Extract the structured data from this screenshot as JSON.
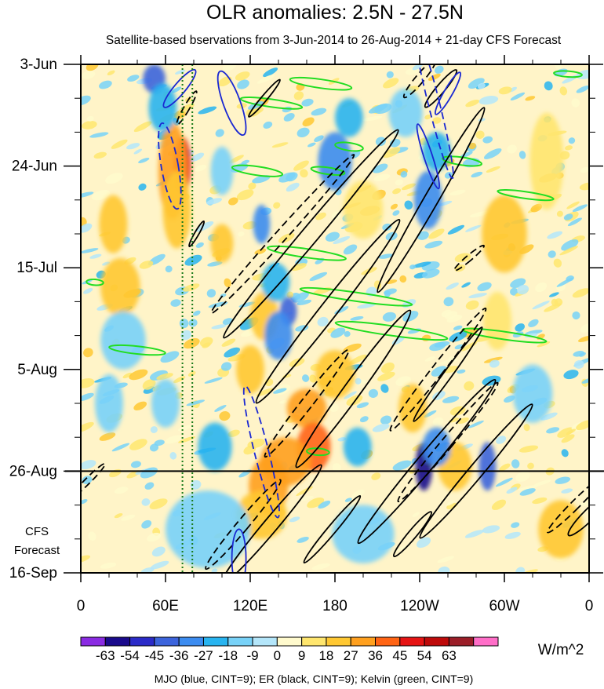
{
  "chart_data": {
    "type": "heatmap",
    "title": "OLR anomalies: 2.5N - 27.5N",
    "subtitle": "Satellite-based bservations from 3-Jun-2014 to 26-Aug-2014 + 21-day CFS Forecast",
    "xlabel": "",
    "ylabel": "",
    "x_ticks": [
      "0",
      "60E",
      "120E",
      "180",
      "120W",
      "60W",
      "0"
    ],
    "x_tick_values": [
      0,
      60,
      120,
      180,
      240,
      300,
      360
    ],
    "xlim": [
      0,
      360
    ],
    "y_ticks": [
      "3-Jun",
      "24-Jun",
      "15-Jul",
      "5-Aug",
      "26-Aug",
      "16-Sep"
    ],
    "y_tick_values": [
      0,
      21,
      42,
      63,
      84,
      105
    ],
    "ylim": [
      0,
      105
    ],
    "forecast_label": [
      "CFS",
      "Forecast"
    ],
    "forecast_start_day": 84,
    "colorbar": {
      "labels": [
        "-63",
        "-54",
        "-45",
        "-36",
        "-27",
        "-18",
        "-9",
        "0",
        "9",
        "18",
        "27",
        "36",
        "45",
        "54",
        "63"
      ],
      "levels": [
        -63,
        -54,
        -45,
        -36,
        -27,
        -18,
        -9,
        0,
        9,
        18,
        27,
        36,
        45,
        54,
        63
      ],
      "colors": [
        "#8a2be2",
        "#1a0a8c",
        "#2b2bc8",
        "#3c64dc",
        "#3c8cf0",
        "#28b4f0",
        "#78d2f8",
        "#b4e6fa",
        "#fffacd",
        "#ffe66e",
        "#ffc832",
        "#ffa01e",
        "#ff6414",
        "#e61414",
        "#be0a0a",
        "#9b1e28",
        "#ff6ec8"
      ],
      "units": "W/m^2"
    },
    "footer": "MJO (blue, CINT=9); ER (black, CINT=9); Kelvin (green, CINT=9)",
    "reference_lines": [
      {
        "lon": 72,
        "style": "dotted",
        "color": "#1a7a1a"
      },
      {
        "lon": 79,
        "style": "dotted",
        "color": "#1a7a1a"
      }
    ],
    "anomalies": [
      {
        "lon": 72,
        "day": 21,
        "w": 6,
        "h": 6,
        "value": 50
      },
      {
        "lon": 65,
        "day": 22,
        "w": 10,
        "h": 10,
        "value": 30
      },
      {
        "lon": 68,
        "day": 30,
        "w": 10,
        "h": 8,
        "value": 22
      },
      {
        "lon": 23,
        "day": 33,
        "w": 10,
        "h": 6,
        "value": 22
      },
      {
        "lon": 28,
        "day": 46,
        "w": 14,
        "h": 6,
        "value": 18
      },
      {
        "lon": 100,
        "day": 37,
        "w": 8,
        "h": 4,
        "value": 20
      },
      {
        "lon": 130,
        "day": 52,
        "w": 10,
        "h": 5,
        "value": 22
      },
      {
        "lon": 120,
        "day": 63,
        "w": 10,
        "h": 5,
        "value": 18
      },
      {
        "lon": 160,
        "day": 71,
        "w": 14,
        "h": 4,
        "value": 30
      },
      {
        "lon": 165,
        "day": 79,
        "w": 12,
        "h": 5,
        "value": 38
      },
      {
        "lon": 145,
        "day": 82,
        "w": 18,
        "h": 5,
        "value": 30
      },
      {
        "lon": 133,
        "day": 87,
        "w": 14,
        "h": 6,
        "value": 30
      },
      {
        "lon": 128,
        "day": 93,
        "w": 18,
        "h": 5,
        "value": 20
      },
      {
        "lon": 180,
        "day": 64,
        "w": 14,
        "h": 5,
        "value": 18
      },
      {
        "lon": 235,
        "day": 71,
        "w": 10,
        "h": 5,
        "value": 18
      },
      {
        "lon": 265,
        "day": 83,
        "w": 12,
        "h": 5,
        "value": 22
      },
      {
        "lon": 300,
        "day": 35,
        "w": 16,
        "h": 8,
        "value": 18
      },
      {
        "lon": 295,
        "day": 53,
        "w": 10,
        "h": 6,
        "value": 14
      },
      {
        "lon": 330,
        "day": 20,
        "w": 12,
        "h": 10,
        "value": 14
      },
      {
        "lon": 340,
        "day": 96,
        "w": 16,
        "h": 6,
        "value": 18
      },
      {
        "lon": 200,
        "day": 30,
        "w": 14,
        "h": 6,
        "value": 14
      },
      {
        "lon": 52,
        "day": 3,
        "w": 8,
        "h": 3,
        "value": -40
      },
      {
        "lon": 58,
        "day": 9,
        "w": 10,
        "h": 5,
        "value": -20
      },
      {
        "lon": 128,
        "day": 33,
        "w": 6,
        "h": 4,
        "value": -35
      },
      {
        "lon": 138,
        "day": 45,
        "w": 10,
        "h": 4,
        "value": -25
      },
      {
        "lon": 147,
        "day": 51,
        "w": 6,
        "h": 3,
        "value": -40
      },
      {
        "lon": 140,
        "day": 56,
        "w": 10,
        "h": 5,
        "value": -30
      },
      {
        "lon": 180,
        "day": 20,
        "w": 12,
        "h": 6,
        "value": -30
      },
      {
        "lon": 190,
        "day": 11,
        "w": 10,
        "h": 4,
        "value": -20
      },
      {
        "lon": 246,
        "day": 28,
        "w": 10,
        "h": 6,
        "value": -36
      },
      {
        "lon": 252,
        "day": 18,
        "w": 10,
        "h": 4,
        "value": -22
      },
      {
        "lon": 230,
        "day": 10,
        "w": 12,
        "h": 5,
        "value": -18
      },
      {
        "lon": 243,
        "day": 83,
        "w": 6,
        "h": 5,
        "value": -55
      },
      {
        "lon": 252,
        "day": 79,
        "w": 10,
        "h": 4,
        "value": -30
      },
      {
        "lon": 288,
        "day": 83,
        "w": 6,
        "h": 5,
        "value": -45
      },
      {
        "lon": 196,
        "day": 79,
        "w": 10,
        "h": 4,
        "value": -20
      },
      {
        "lon": 95,
        "day": 79,
        "w": 12,
        "h": 5,
        "value": -25
      },
      {
        "lon": 60,
        "day": 70,
        "w": 10,
        "h": 5,
        "value": -18
      },
      {
        "lon": 20,
        "day": 70,
        "w": 10,
        "h": 6,
        "value": -18
      },
      {
        "lon": 30,
        "day": 57,
        "w": 16,
        "h": 6,
        "value": -14
      },
      {
        "lon": 100,
        "day": 22,
        "w": 8,
        "h": 5,
        "value": -18
      },
      {
        "lon": 320,
        "day": 68,
        "w": 14,
        "h": 6,
        "value": -14
      },
      {
        "lon": 90,
        "day": 96,
        "w": 30,
        "h": 8,
        "value": -10
      },
      {
        "lon": 200,
        "day": 97,
        "w": 22,
        "h": 6,
        "value": -12
      }
    ],
    "mjo_contours": [
      {
        "lon": 63,
        "day": 21,
        "rx": 6,
        "ry": 9,
        "angle": -10,
        "dash": true
      },
      {
        "lon": 70,
        "day": 5,
        "rx": 4,
        "ry": 5,
        "angle": 40,
        "dash": false
      },
      {
        "lon": 107,
        "day": 8,
        "rx": 6,
        "ry": 7,
        "angle": -20,
        "dash": false
      },
      {
        "lon": 246,
        "day": 19,
        "rx": 3,
        "ry": 7,
        "angle": -18,
        "dash": false
      },
      {
        "lon": 250,
        "day": 8,
        "rx": 4,
        "ry": 16,
        "angle": -14,
        "dash": true
      },
      {
        "lon": 128,
        "day": 80,
        "rx": 5,
        "ry": 14,
        "angle": -14,
        "dash": true
      },
      {
        "lon": 112,
        "day": 102,
        "rx": 5,
        "ry": 6,
        "angle": 0,
        "dash": false
      },
      {
        "lon": 260,
        "day": 6,
        "rx": 3,
        "ry": 5,
        "angle": 30,
        "dash": false
      }
    ],
    "er_contours": [
      {
        "lon": 163,
        "day": 35,
        "rx": 6,
        "ry": 28,
        "angle": 40,
        "dash": false
      },
      {
        "lon": 143,
        "day": 35,
        "rx": 4,
        "ry": 22,
        "angle": 42,
        "dash": true
      },
      {
        "lon": 175,
        "day": 51,
        "rx": 6,
        "ry": 24,
        "angle": 38,
        "dash": false
      },
      {
        "lon": 193,
        "day": 67,
        "rx": 6,
        "ry": 20,
        "angle": 36,
        "dash": false
      },
      {
        "lon": 160,
        "day": 70,
        "rx": 4,
        "ry": 14,
        "angle": 38,
        "dash": true
      },
      {
        "lon": 245,
        "day": 82,
        "rx": 6,
        "ry": 22,
        "angle": 40,
        "dash": false
      },
      {
        "lon": 280,
        "day": 84,
        "rx": 5,
        "ry": 18,
        "angle": 40,
        "dash": false
      },
      {
        "lon": 260,
        "day": 78,
        "rx": 4,
        "ry": 16,
        "angle": 40,
        "dash": true
      },
      {
        "lon": 248,
        "day": 28,
        "rx": 5,
        "ry": 22,
        "angle": 30,
        "dash": false
      },
      {
        "lon": 253,
        "day": 63,
        "rx": 4,
        "ry": 16,
        "angle": 38,
        "dash": true
      },
      {
        "lon": 260,
        "day": 64,
        "rx": 3,
        "ry": 12,
        "angle": 36,
        "dash": false
      },
      {
        "lon": 275,
        "day": 40,
        "rx": 2,
        "ry": 4,
        "angle": 50,
        "dash": true
      },
      {
        "lon": 240,
        "day": 3,
        "rx": 3,
        "ry": 5,
        "angle": 40,
        "dash": true
      },
      {
        "lon": 255,
        "day": 5,
        "rx": 3,
        "ry": 5,
        "angle": 40,
        "dash": false
      },
      {
        "lon": 130,
        "day": 7,
        "rx": 2,
        "ry": 5,
        "angle": 40,
        "dash": false
      },
      {
        "lon": 75,
        "day": 9,
        "rx": 2,
        "ry": 4,
        "angle": 30,
        "dash": true
      },
      {
        "lon": 82,
        "day": 35,
        "rx": 1.5,
        "ry": 3,
        "angle": 30,
        "dash": false
      },
      {
        "lon": 135,
        "day": 95,
        "rx": 5,
        "ry": 16,
        "angle": 40,
        "dash": false
      },
      {
        "lon": 115,
        "day": 95,
        "rx": 4,
        "ry": 12,
        "angle": 40,
        "dash": true
      },
      {
        "lon": 178,
        "day": 96,
        "rx": 3,
        "ry": 9,
        "angle": 40,
        "dash": false
      },
      {
        "lon": 235,
        "day": 97,
        "rx": 3,
        "ry": 6,
        "angle": 40,
        "dash": false
      },
      {
        "lon": 350,
        "day": 91,
        "rx": 3,
        "ry": 8,
        "angle": 45,
        "dash": true
      },
      {
        "lon": 5,
        "day": 86,
        "rx": 2,
        "ry": 5,
        "angle": 45,
        "dash": true
      },
      {
        "lon": 360,
        "day": 93,
        "rx": 4,
        "ry": 6,
        "angle": 45,
        "dash": false
      }
    ],
    "kelvin_contours": [
      {
        "lon": 170,
        "day": 4,
        "rx": 22,
        "ry": 0.9,
        "angle": 8
      },
      {
        "lon": 135,
        "day": 8,
        "rx": 22,
        "ry": 0.8,
        "angle": 8
      },
      {
        "lon": 190,
        "day": 17,
        "rx": 10,
        "ry": 0.8,
        "angle": 8
      },
      {
        "lon": 125,
        "day": 22,
        "rx": 18,
        "ry": 0.9,
        "angle": 8
      },
      {
        "lon": 175,
        "day": 22,
        "rx": 12,
        "ry": 0.7,
        "angle": 8
      },
      {
        "lon": 270,
        "day": 20,
        "rx": 14,
        "ry": 0.8,
        "angle": 8
      },
      {
        "lon": 315,
        "day": 27,
        "rx": 20,
        "ry": 0.7,
        "angle": 8
      },
      {
        "lon": 160,
        "day": 39,
        "rx": 28,
        "ry": 0.9,
        "angle": 8
      },
      {
        "lon": 195,
        "day": 48,
        "rx": 40,
        "ry": 0.9,
        "angle": 8
      },
      {
        "lon": 220,
        "day": 55,
        "rx": 40,
        "ry": 1.0,
        "angle": 8
      },
      {
        "lon": 300,
        "day": 56,
        "rx": 30,
        "ry": 0.8,
        "angle": 8
      },
      {
        "lon": 40,
        "day": 59,
        "rx": 20,
        "ry": 0.8,
        "angle": 6
      },
      {
        "lon": 168,
        "day": 80,
        "rx": 8,
        "ry": 0.7,
        "angle": 4
      },
      {
        "lon": 345,
        "day": 2,
        "rx": 10,
        "ry": 0.6,
        "angle": 4
      },
      {
        "lon": 10,
        "day": 45,
        "rx": 6,
        "ry": 0.6,
        "angle": 4
      }
    ]
  }
}
